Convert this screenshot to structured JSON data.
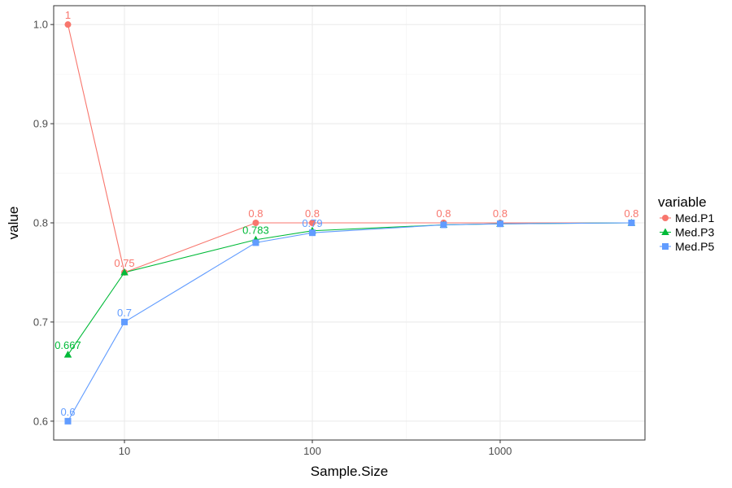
{
  "chart_data": {
    "type": "line",
    "xlabel": "Sample.Size",
    "ylabel": "value",
    "x_scale": "log10",
    "xlim": [
      4.2,
      5900
    ],
    "ylim": [
      0.581,
      1.019
    ],
    "x_ticks": [
      10,
      100,
      1000
    ],
    "x_tick_labels": [
      "10",
      "100",
      "1000"
    ],
    "y_ticks": [
      0.6,
      0.7,
      0.8,
      0.9,
      1.0
    ],
    "y_tick_labels": [
      "0.6",
      "0.7",
      "0.8",
      "0.9",
      "1.0"
    ],
    "grid": true,
    "legend": {
      "title": "variable",
      "position": "right"
    },
    "x": [
      5,
      10,
      50,
      100,
      500,
      1000,
      5000
    ],
    "series": [
      {
        "name": "Med.P1",
        "color": "#f8766d",
        "marker": "circle",
        "values": [
          1.0,
          0.75,
          0.8,
          0.8,
          0.8,
          0.8,
          0.8
        ],
        "labels": [
          "1",
          "0.75",
          "0.8",
          "0.8",
          "0.8",
          "0.8",
          "0.8"
        ]
      },
      {
        "name": "Med.P3",
        "color": "#00ba38",
        "marker": "triangle",
        "values": [
          0.667,
          0.75,
          0.783,
          0.792,
          0.798,
          0.799,
          0.8
        ],
        "labels": [
          "0.667",
          "",
          "0.783",
          "",
          "",
          "",
          ""
        ]
      },
      {
        "name": "Med.P5",
        "color": "#619cff",
        "marker": "square",
        "values": [
          0.6,
          0.7,
          0.78,
          0.79,
          0.798,
          0.799,
          0.8
        ],
        "labels": [
          "0.6",
          "0.7",
          "",
          "0.79",
          "",
          "",
          ""
        ]
      }
    ]
  }
}
